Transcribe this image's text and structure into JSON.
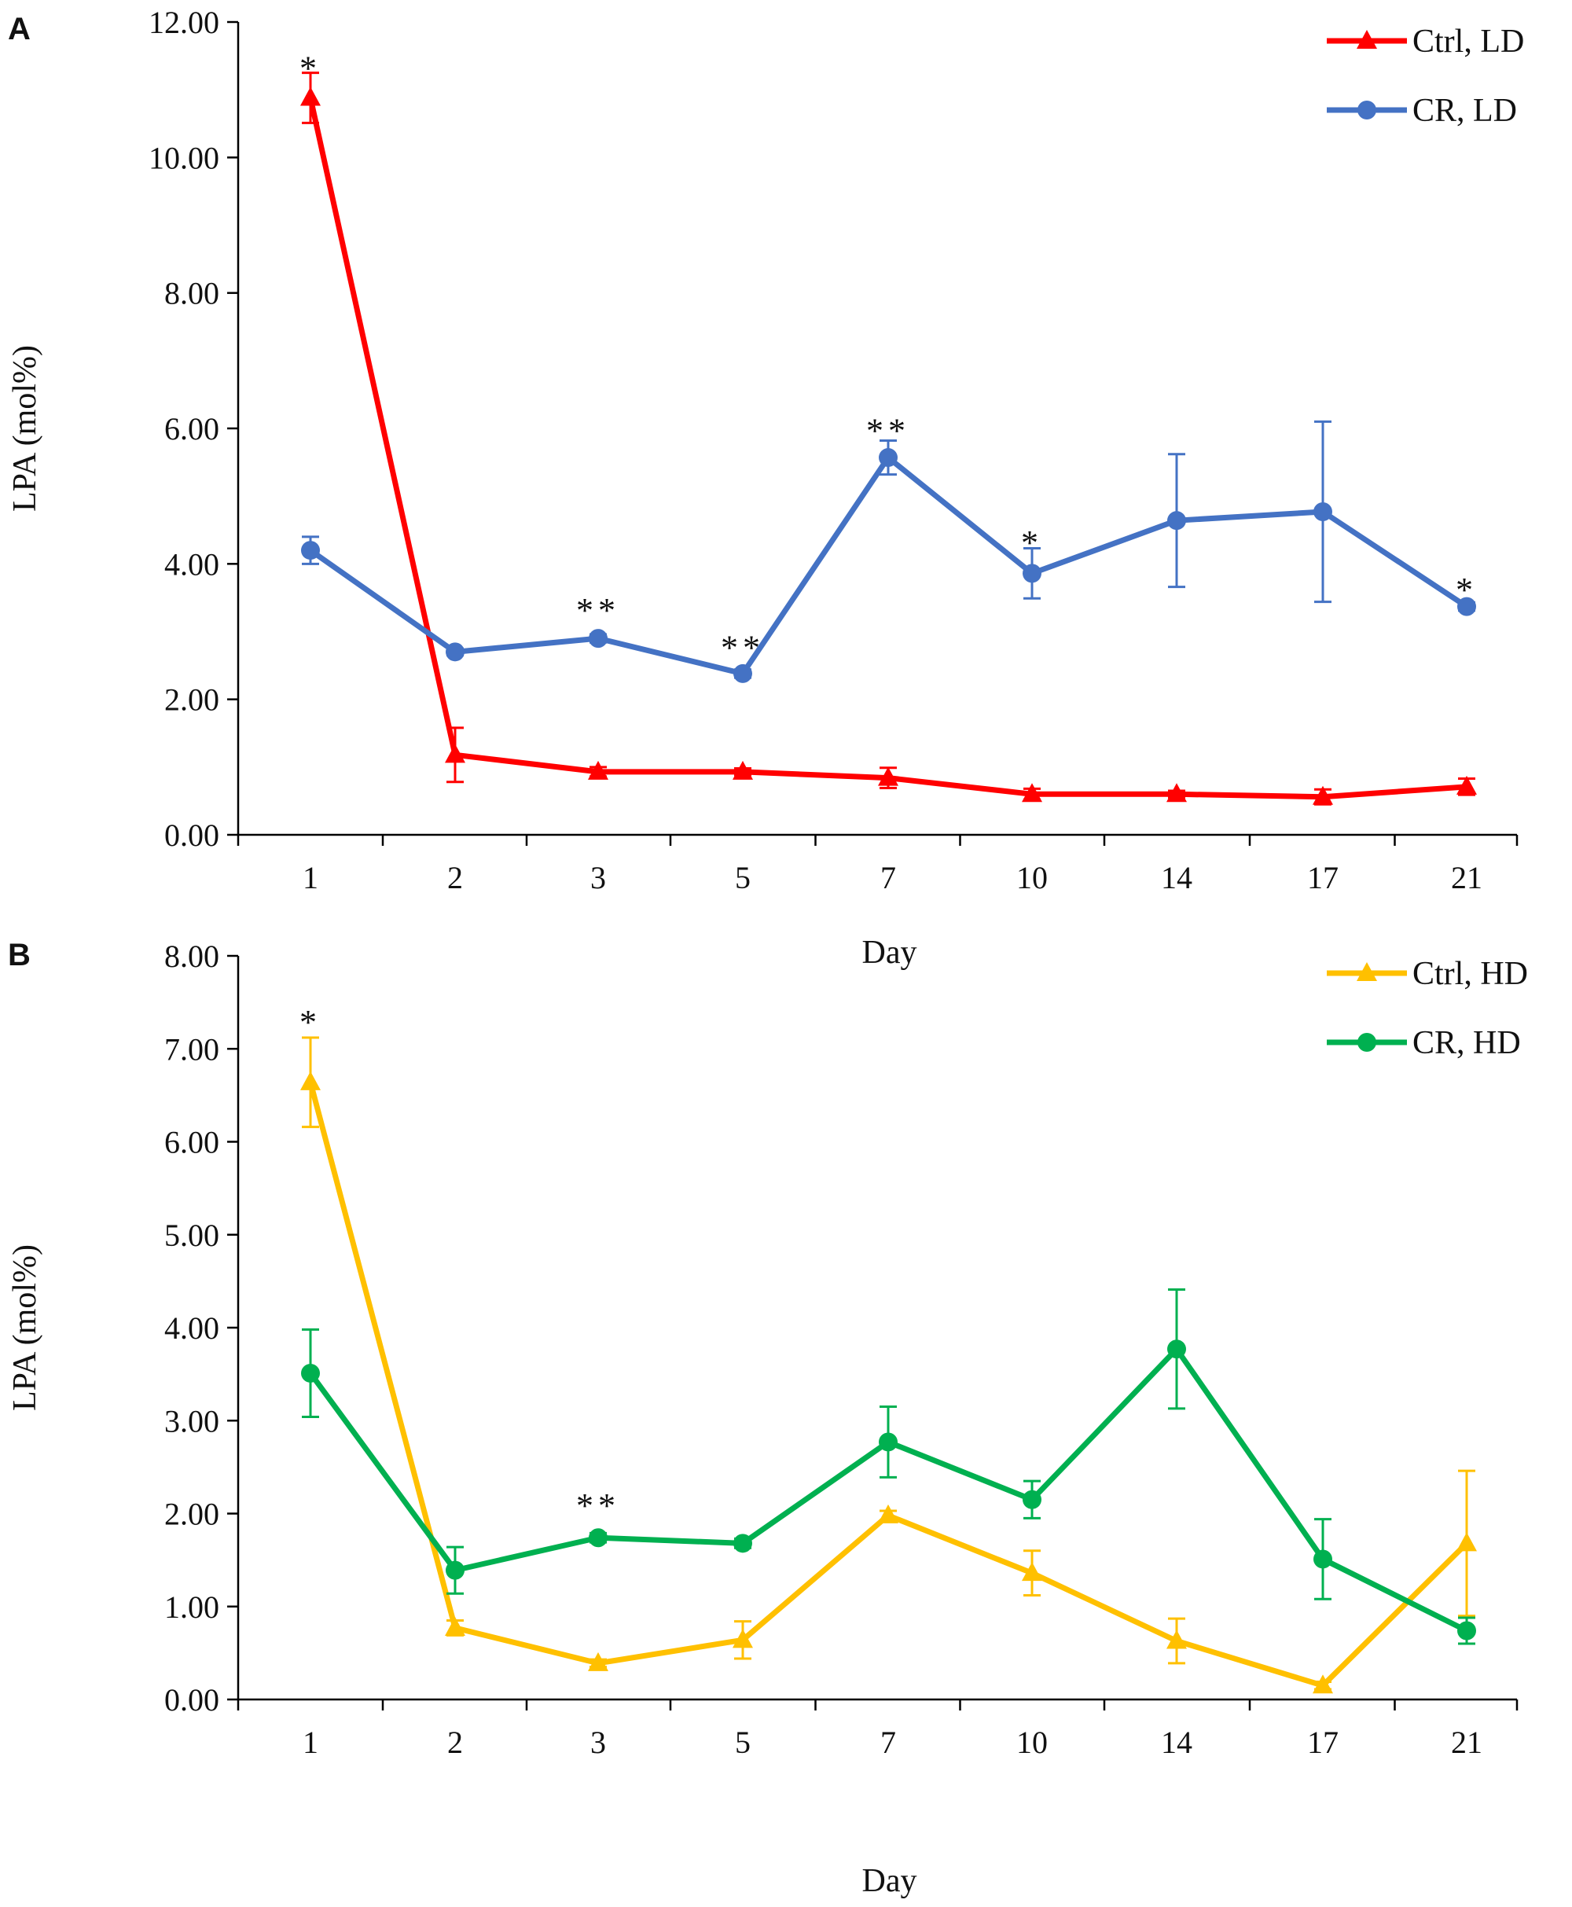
{
  "figure": {
    "panels": [
      "A",
      "B"
    ]
  },
  "chart_data": [
    {
      "panel": "A",
      "type": "line",
      "xlabel": "Day",
      "ylabel": "LPA (mol%)",
      "categories": [
        "1",
        "2",
        "3",
        "5",
        "7",
        "10",
        "14",
        "17",
        "21"
      ],
      "ylim": [
        0,
        12
      ],
      "yticks": [
        "0.00",
        "2.00",
        "4.00",
        "6.00",
        "8.00",
        "10.00",
        "12.00"
      ],
      "grid": false,
      "legend_position": "top-right",
      "series": [
        {
          "name": "Ctrl, LD",
          "color": "#FF0000",
          "marker": "triangle",
          "values": [
            10.88,
            1.18,
            0.93,
            0.93,
            0.84,
            0.6,
            0.6,
            0.56,
            0.71
          ],
          "errors": [
            0.37,
            0.4,
            0.07,
            0.05,
            0.15,
            0.08,
            0.05,
            0.11,
            0.12
          ]
        },
        {
          "name": "CR, LD",
          "color": "#4472C4",
          "marker": "circle",
          "values": [
            4.2,
            2.7,
            2.9,
            2.38,
            5.57,
            3.86,
            4.64,
            4.77,
            3.37
          ],
          "errors": [
            0.2,
            0.05,
            0.06,
            0.06,
            0.25,
            0.37,
            0.98,
            1.33,
            0.06
          ]
        }
      ],
      "annotations": [
        {
          "category": "1",
          "text": "*",
          "y": 11.4
        },
        {
          "category": "3",
          "text": "**",
          "y": 3.4
        },
        {
          "category": "5",
          "text": "**",
          "y": 2.85
        },
        {
          "category": "7",
          "text": "**",
          "y": 6.05
        },
        {
          "category": "10",
          "text": "*",
          "y": 4.4
        },
        {
          "category": "21",
          "text": "*",
          "y": 3.7
        }
      ]
    },
    {
      "panel": "B",
      "type": "line",
      "xlabel": "Day",
      "ylabel": "LPA (mol%)",
      "categories": [
        "1",
        "2",
        "3",
        "5",
        "7",
        "10",
        "14",
        "17",
        "21"
      ],
      "ylim": [
        0,
        8
      ],
      "yticks": [
        "0.00",
        "1.00",
        "2.00",
        "3.00",
        "4.00",
        "5.00",
        "6.00",
        "7.00",
        "8.00"
      ],
      "grid": false,
      "legend_position": "top-right",
      "series": [
        {
          "name": "Ctrl, HD",
          "color": "#FFC000",
          "marker": "triangle",
          "values": [
            6.64,
            0.77,
            0.39,
            0.64,
            1.98,
            1.36,
            0.63,
            0.15,
            1.68
          ],
          "errors": [
            0.48,
            0.08,
            0.04,
            0.2,
            0.05,
            0.24,
            0.24,
            0.04,
            0.78
          ]
        },
        {
          "name": "CR, HD",
          "color": "#00B050",
          "marker": "circle",
          "values": [
            3.51,
            1.39,
            1.74,
            1.68,
            2.77,
            2.15,
            3.77,
            1.51,
            0.74
          ],
          "errors": [
            0.47,
            0.25,
            0.05,
            0.05,
            0.38,
            0.2,
            0.64,
            0.43,
            0.14
          ]
        }
      ],
      "annotations": [
        {
          "category": "1",
          "text": "*",
          "y": 7.35
        },
        {
          "category": "3",
          "text": "**",
          "y": 2.15
        }
      ]
    }
  ]
}
